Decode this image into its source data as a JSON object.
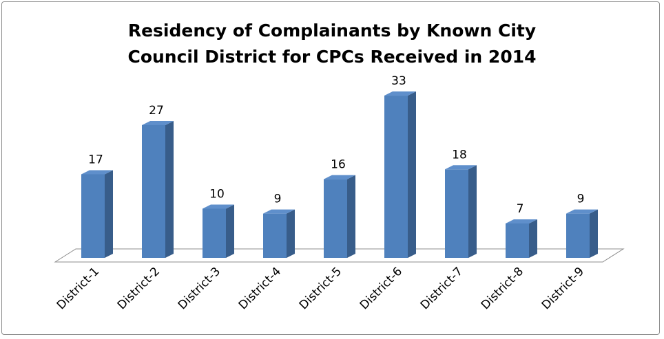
{
  "chart_data": {
    "type": "bar3d",
    "title": "Residency of Complainants by Known City Council District for CPCs Received in 2014",
    "categories": [
      "District-1",
      "District-2",
      "District-3",
      "District-4",
      "District-5",
      "District-6",
      "District-7",
      "District-8",
      "District-9"
    ],
    "values": [
      17,
      27,
      10,
      9,
      16,
      33,
      18,
      7,
      9
    ],
    "color": "#4f81bd"
  }
}
